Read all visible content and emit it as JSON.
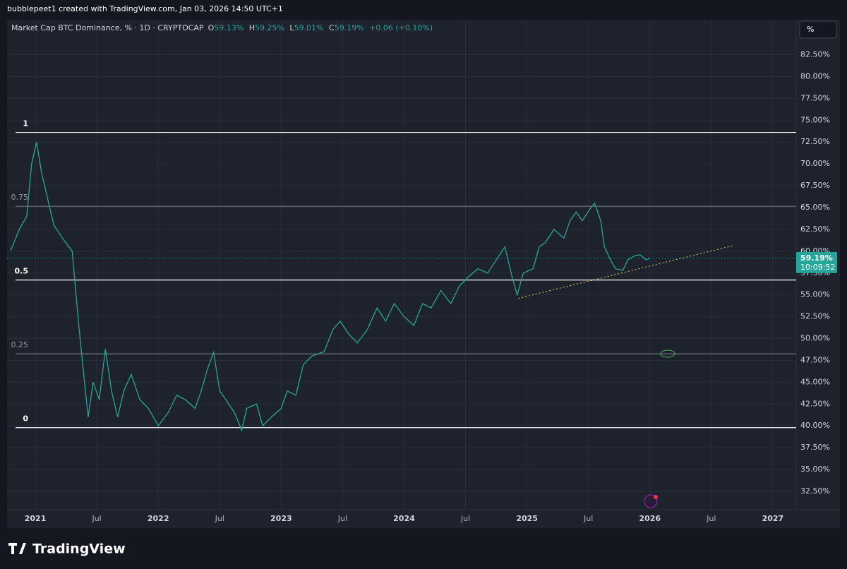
{
  "header": {
    "credit": "bubblepeet1 created with TradingView.com, Jan 03, 2026 14:50 UTC+1",
    "brand": "TradingView",
    "unit_button": "%"
  },
  "chart_data": {
    "type": "line",
    "title": "Market Cap BTC Dominance, % · 1D · CRYPTOCAP",
    "ohlc": {
      "o_label": "O",
      "o": "59.13%",
      "h_label": "H",
      "h": "59.25%",
      "l_label": "L",
      "l": "59.01%",
      "c_label": "C",
      "c": "59.19%",
      "change": "+0.06 (+0.10%)"
    },
    "last_price": {
      "value": 59.19,
      "label": "59.19%",
      "countdown": "10:09:52",
      "color": "#26a69a"
    },
    "x": [
      2020.8,
      2020.87,
      2020.93,
      2020.97,
      2021.01,
      2021.05,
      2021.1,
      2021.15,
      2021.22,
      2021.3,
      2021.35,
      2021.4,
      2021.43,
      2021.47,
      2021.52,
      2021.57,
      2021.62,
      2021.67,
      2021.72,
      2021.78,
      2021.85,
      2021.92,
      2022.0,
      2022.08,
      2022.15,
      2022.22,
      2022.3,
      2022.35,
      2022.4,
      2022.45,
      2022.5,
      2022.55,
      2022.62,
      2022.68,
      2022.72,
      2022.8,
      2022.85,
      2022.92,
      2023.0,
      2023.05,
      2023.12,
      2023.18,
      2023.25,
      2023.35,
      2023.42,
      2023.48,
      2023.55,
      2023.62,
      2023.7,
      2023.78,
      2023.85,
      2023.92,
      2024.0,
      2024.08,
      2024.15,
      2024.22,
      2024.3,
      2024.38,
      2024.45,
      2024.52,
      2024.6,
      2024.68,
      2024.75,
      2024.82,
      2024.88,
      2024.92,
      2024.97,
      2025.05,
      2025.1,
      2025.15,
      2025.22,
      2025.3,
      2025.35,
      2025.4,
      2025.45,
      2025.52,
      2025.55,
      2025.6,
      2025.63,
      2025.68,
      2025.72,
      2025.78,
      2025.82,
      2025.88,
      2025.92,
      2025.97,
      2026.0
    ],
    "series": [
      {
        "name": "BTC Dominance",
        "color": "#26a69a",
        "values": [
          60.1,
          62.5,
          64,
          70,
          72.5,
          69,
          66,
          63,
          61.5,
          60,
          52,
          45,
          41,
          45,
          43,
          48.8,
          44,
          41,
          44,
          45.9,
          43,
          42,
          40,
          41.5,
          43.5,
          43,
          42,
          44,
          46.5,
          48.4,
          44,
          43,
          41.5,
          39.5,
          42,
          42.5,
          40,
          41,
          42,
          44,
          43.5,
          47,
          48,
          48.5,
          51,
          52,
          50.5,
          49.5,
          51,
          53.5,
          52,
          54,
          52.5,
          51.5,
          54,
          53.5,
          55.5,
          54,
          56,
          57,
          58,
          57.5,
          59,
          60.5,
          57,
          55,
          57.5,
          58,
          60.5,
          61,
          62.5,
          61.5,
          63.5,
          64.5,
          63.5,
          65,
          65.5,
          63.5,
          60.5,
          59,
          58,
          57.8,
          59,
          59.5,
          59.6,
          59,
          59.19
        ]
      }
    ],
    "levels": [
      {
        "label": "1",
        "value": 73.6,
        "color": "#ffffff"
      },
      {
        "label": "0.75",
        "value": 65.15,
        "color": "#9598a1"
      },
      {
        "label": "0.5",
        "value": 56.7,
        "color": "#ffffff"
      },
      {
        "label": "0.25",
        "value": 48.25,
        "color": "#9598a1"
      },
      {
        "label": "0",
        "value": 39.8,
        "color": "#ffffff"
      }
    ],
    "trendline": {
      "x": [
        2024.93,
        2026.68
      ],
      "values": [
        54.6,
        60.65
      ],
      "color": "#c9b458"
    },
    "xlim": [
      2020.77,
      2027.19
    ],
    "xticks": [
      {
        "value": 2021,
        "label": "2021"
      },
      {
        "value": 2021.5,
        "label": "Jul"
      },
      {
        "value": 2022,
        "label": "2022"
      },
      {
        "value": 2022.5,
        "label": "Jul"
      },
      {
        "value": 2023,
        "label": "2023"
      },
      {
        "value": 2023.5,
        "label": "Jul"
      },
      {
        "value": 2024,
        "label": "2024"
      },
      {
        "value": 2024.5,
        "label": "Jul"
      },
      {
        "value": 2025,
        "label": "2025"
      },
      {
        "value": 2025.5,
        "label": "Jul"
      },
      {
        "value": 2026,
        "label": "2026"
      },
      {
        "value": 2026.5,
        "label": "Jul"
      },
      {
        "value": 2027,
        "label": "2027"
      }
    ],
    "ylim": [
      30.4,
      86.5
    ],
    "yticks": [
      {
        "value": 32.5,
        "label": "32.50%"
      },
      {
        "value": 35,
        "label": "35.00%"
      },
      {
        "value": 37.5,
        "label": "37.50%"
      },
      {
        "value": 40,
        "label": "40.00%"
      },
      {
        "value": 42.5,
        "label": "42.50%"
      },
      {
        "value": 45,
        "label": "45.00%"
      },
      {
        "value": 47.5,
        "label": "47.50%"
      },
      {
        "value": 50,
        "label": "50.00%"
      },
      {
        "value": 52.5,
        "label": "52.50%"
      },
      {
        "value": 55,
        "label": "55.00%"
      },
      {
        "value": 57.5,
        "label": "57.50%"
      },
      {
        "value": 60,
        "label": "60.00%"
      },
      {
        "value": 62.5,
        "label": "62.50%"
      },
      {
        "value": 65,
        "label": "65.00%"
      },
      {
        "value": 67.5,
        "label": "67.50%"
      },
      {
        "value": 70,
        "label": "70.00%"
      },
      {
        "value": 72.5,
        "label": "72.50%"
      },
      {
        "value": 75,
        "label": "75.00%"
      },
      {
        "value": 77.5,
        "label": "77.50%"
      },
      {
        "value": 80,
        "label": "80.00%"
      },
      {
        "value": 82.5,
        "label": "82.50%"
      }
    ],
    "grid": true
  }
}
